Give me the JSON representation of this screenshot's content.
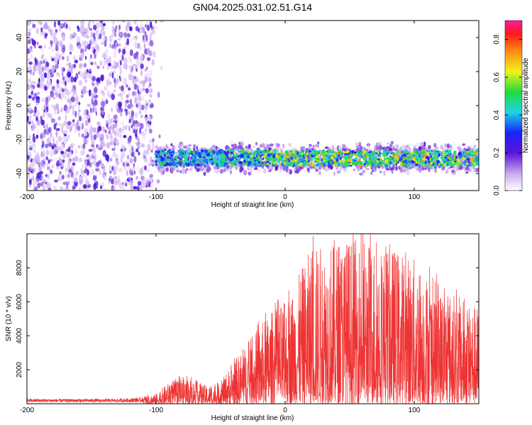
{
  "title": "GN04.2025.031.02.51.G14",
  "chart_data": [
    {
      "type": "heatmap",
      "xlabel": "Height of straight line (km)",
      "ylabel": "Frequency (Hz)",
      "xlim": [
        -200,
        150
      ],
      "ylim": [
        -50,
        50
      ],
      "xticks": [
        -200,
        -100,
        0,
        100
      ],
      "yticks": [
        -40,
        -20,
        0,
        20,
        40
      ],
      "colorbar": {
        "label": "Normalized spectral amplitude",
        "range": [
          0.0,
          0.9
        ],
        "ticks": [
          0.0,
          0.2,
          0.4,
          0.6,
          0.8
        ]
      },
      "regions": [
        {
          "x_range": [
            -200,
            -102
          ],
          "freq_range": [
            -50,
            50
          ],
          "amplitude": 0.05
        },
        {
          "x_range": [
            -100,
            150
          ],
          "freq_center": -31,
          "freq_halfwidth": 8,
          "amplitude_max": 0.75
        }
      ]
    },
    {
      "type": "line",
      "xlabel": "Height of straight line (km)",
      "ylabel": "SNR (10 * v/v)",
      "xlim": [
        -200,
        150
      ],
      "ylim": [
        0,
        10000
      ],
      "xticks": [
        -200,
        -100,
        0,
        100
      ],
      "yticks": [
        2000,
        4000,
        6000,
        8000
      ],
      "color": "#ee3333",
      "envelope_x": [
        -200,
        -130,
        -100,
        -90,
        -80,
        -70,
        -60,
        -50,
        -40,
        -30,
        -20,
        -10,
        0,
        10,
        20,
        40,
        60,
        80,
        100,
        120,
        150
      ],
      "envelope_y": [
        300,
        300,
        500,
        1100,
        1400,
        1200,
        900,
        1100,
        2200,
        3000,
        4000,
        4800,
        5200,
        6500,
        8000,
        8500,
        8500,
        8200,
        7500,
        6000,
        5000
      ]
    }
  ]
}
